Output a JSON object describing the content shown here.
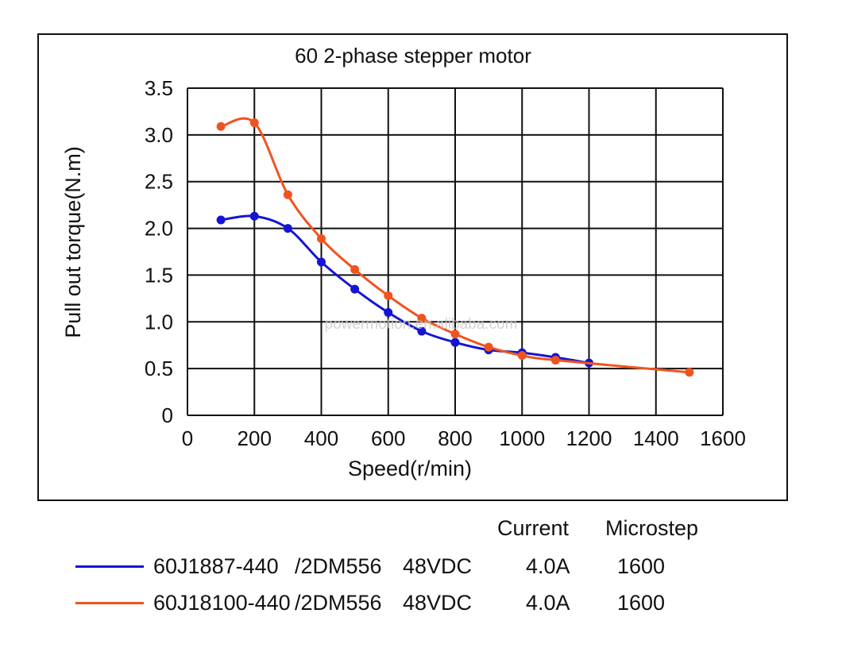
{
  "chart_data": {
    "type": "line",
    "title": "60 2-phase stepper motor",
    "xlabel": "Speed(r/min)",
    "ylabel": "Pull out torque(N.m)",
    "xlim": [
      0,
      1600
    ],
    "ylim": [
      0,
      3.5
    ],
    "xticks": [
      "0",
      "200",
      "400",
      "600",
      "800",
      "1000",
      "1200",
      "1400",
      "1600"
    ],
    "yticks": [
      "0",
      "0.5",
      "1.0",
      "1.5",
      "2.0",
      "2.5",
      "3.0",
      "3.5"
    ],
    "grid": true,
    "watermark": "powermotion.en.alibaba.com",
    "series": [
      {
        "name": "60J1887-440 /2DM556 48VDC",
        "color": "#1414d6",
        "x": [
          100,
          200,
          300,
          400,
          500,
          600,
          700,
          800,
          900,
          1000,
          1100,
          1200
        ],
        "y": [
          2.09,
          2.13,
          2.0,
          1.64,
          1.35,
          1.1,
          0.9,
          0.78,
          0.7,
          0.67,
          0.62,
          0.56
        ]
      },
      {
        "name": "60J18100-440 /2DM556 48VDC",
        "color": "#f0541e",
        "x": [
          100,
          200,
          300,
          400,
          500,
          600,
          700,
          800,
          900,
          1000,
          1100,
          1500
        ],
        "y": [
          3.09,
          3.13,
          2.36,
          1.89,
          1.56,
          1.28,
          1.04,
          0.87,
          0.73,
          0.64,
          0.59,
          0.46
        ]
      }
    ]
  },
  "legend": {
    "header_current": "Current",
    "header_microstep": "Microstep",
    "rows": [
      {
        "model": "60J1887-440",
        "driver": "/2DM556",
        "voltage": "48VDC",
        "current": "4.0A",
        "microstep": "1600",
        "color": "#1414d6"
      },
      {
        "model": "60J18100-440",
        "driver": "/2DM556",
        "voltage": "48VDC",
        "current": "4.0A",
        "microstep": "1600",
        "color": "#f0541e"
      }
    ]
  }
}
